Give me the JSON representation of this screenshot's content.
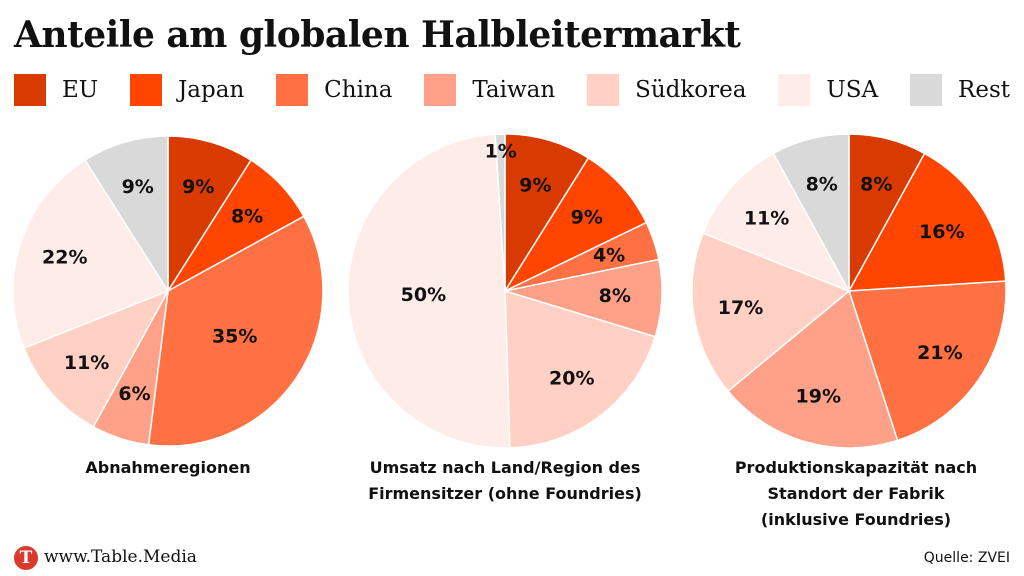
{
  "title": "Anteile am globalen Halbleitermarkt",
  "legend": [
    {
      "label": "EU",
      "color": "#d93a00"
    },
    {
      "label": "Japan",
      "color": "#ff4500"
    },
    {
      "label": "China",
      "color": "#ff7043"
    },
    {
      "label": "Taiwan",
      "color": "#ffa088"
    },
    {
      "label": "Südkorea",
      "color": "#ffd0c3"
    },
    {
      "label": "USA",
      "color": "#fdece7"
    },
    {
      "label": "Rest",
      "color": "#d9d9d9"
    }
  ],
  "chart_data": [
    {
      "type": "pie",
      "title": "Abnahmeregionen",
      "categories": [
        "EU",
        "Japan",
        "China",
        "Taiwan",
        "Südkorea",
        "USA",
        "Rest"
      ],
      "values": [
        9,
        8,
        35,
        6,
        11,
        22,
        9
      ],
      "labels": [
        "9%",
        "8%",
        "35%",
        "6%",
        "11%",
        "22%",
        "9%"
      ]
    },
    {
      "type": "pie",
      "title": "Umsatz nach Land/Region des Firmensitzer (ohne Foundries)",
      "categories": [
        "EU",
        "Japan",
        "China",
        "Taiwan",
        "Südkorea",
        "USA",
        "Rest"
      ],
      "values": [
        9,
        9,
        4,
        8,
        20,
        50,
        1
      ],
      "labels": [
        "9%",
        "9%",
        "4%",
        "8%",
        "20%",
        "50%",
        "1%"
      ]
    },
    {
      "type": "pie",
      "title": "Produktionskapazität nach Standort der Fabrik (inklusive Foundries)",
      "categories": [
        "EU",
        "Japan",
        "China",
        "Taiwan",
        "Südkorea",
        "USA",
        "Rest"
      ],
      "values": [
        8,
        16,
        21,
        19,
        17,
        11,
        8
      ],
      "labels": [
        "8%",
        "16%",
        "21%",
        "19%",
        "17%",
        "11%",
        "8%"
      ]
    }
  ],
  "captions": [
    [
      "Abnahmeregionen"
    ],
    [
      "Umsatz nach Land/Region des",
      "Firmensitzer (ohne Foundries)"
    ],
    [
      "Produktionskapazität nach",
      "Standort der Fabrik",
      "(inklusive Foundries)"
    ]
  ],
  "footer": {
    "logo_letter": "T",
    "site": "www.Table.Media",
    "source": "Quelle: ZVEI"
  }
}
